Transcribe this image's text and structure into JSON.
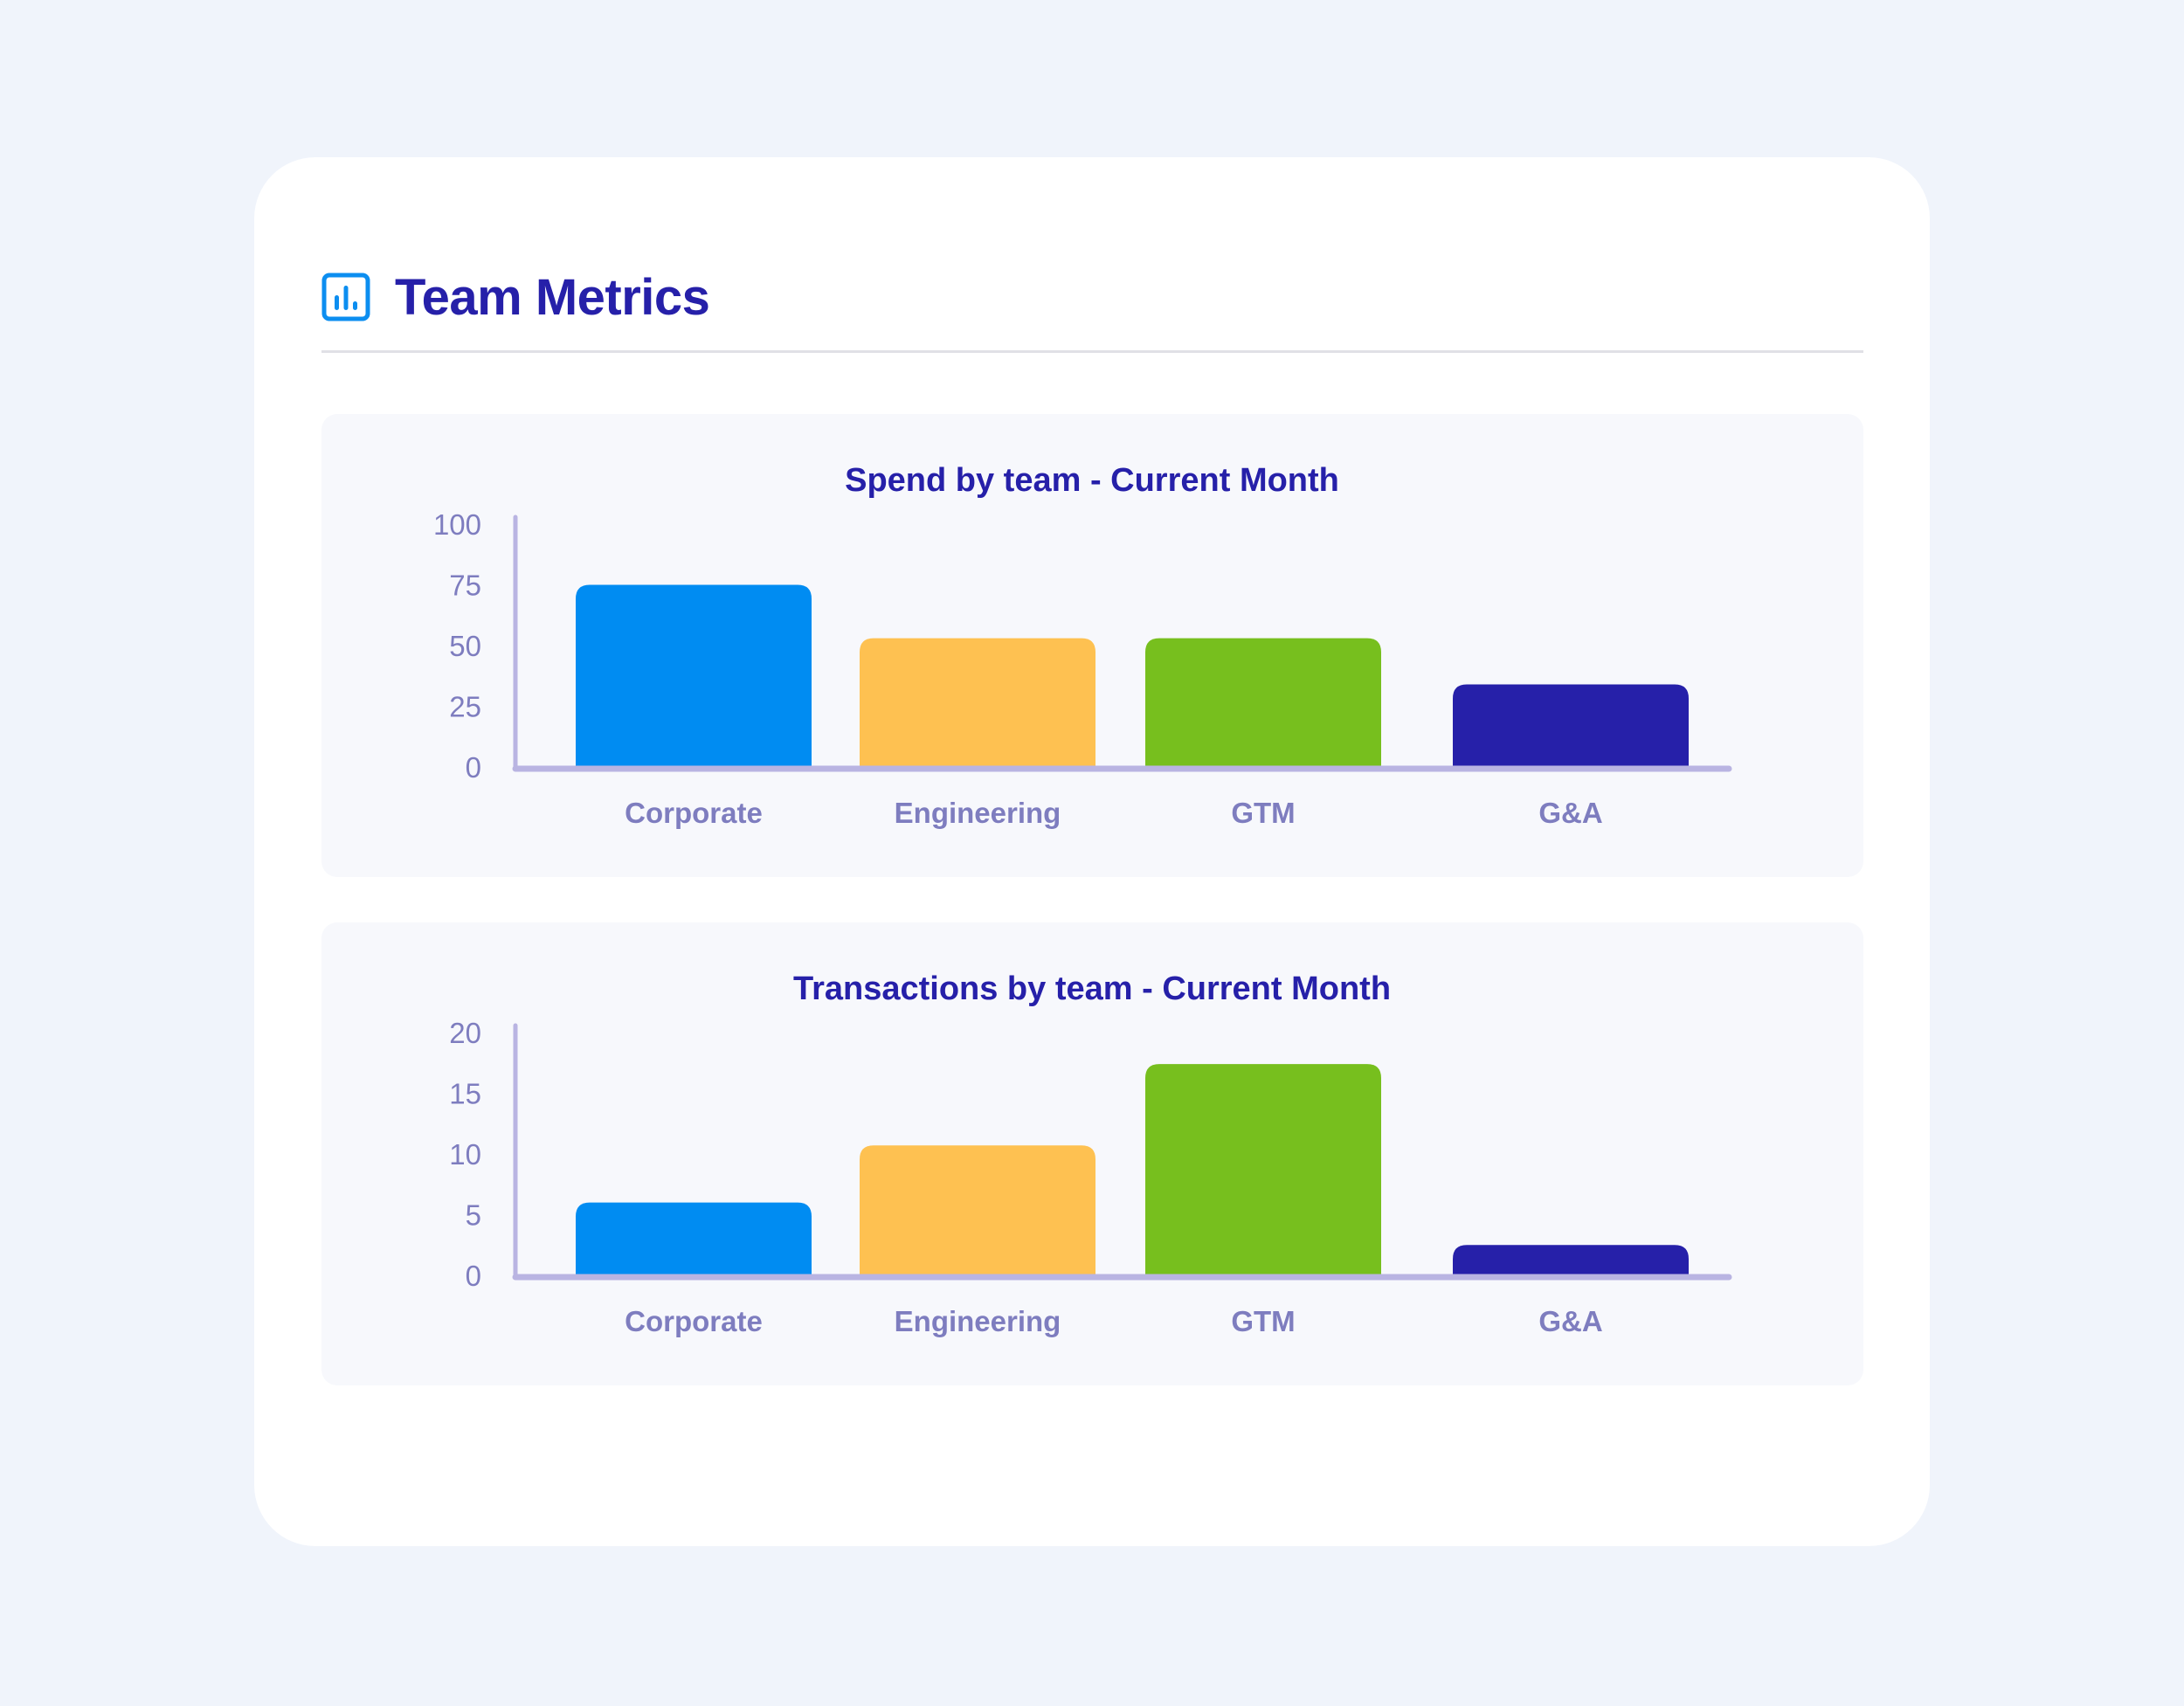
{
  "header": {
    "title": "Team Metrics",
    "icon": "bar-chart-icon"
  },
  "colors": {
    "title": "#2620a9",
    "axis": "#b9b4e2",
    "tick": "#7e7dbf",
    "icon": "#0c8ef0"
  },
  "chart_data": [
    {
      "type": "bar",
      "title": "Spend by team - Current Month",
      "categories": [
        "Corporate",
        "Engineering",
        "GTM",
        "G&A"
      ],
      "values": [
        75,
        53,
        53,
        34
      ],
      "colors": [
        "#008cf2",
        "#fec151",
        "#77bf1e",
        "#2620a9"
      ],
      "ylim": [
        0,
        100
      ],
      "yticks": [
        0,
        25,
        50,
        75,
        100
      ],
      "grid": false
    },
    {
      "type": "bar",
      "title": "Transactions by team - Current Month",
      "categories": [
        "Corporate",
        "Engineering",
        "GTM",
        "G&A"
      ],
      "values": [
        6,
        10.7,
        17.4,
        2.5
      ],
      "colors": [
        "#008cf2",
        "#fec151",
        "#77bf1e",
        "#2620a9"
      ],
      "ylim": [
        0,
        20
      ],
      "yticks": [
        0,
        5,
        10,
        15,
        20
      ],
      "grid": false
    }
  ]
}
